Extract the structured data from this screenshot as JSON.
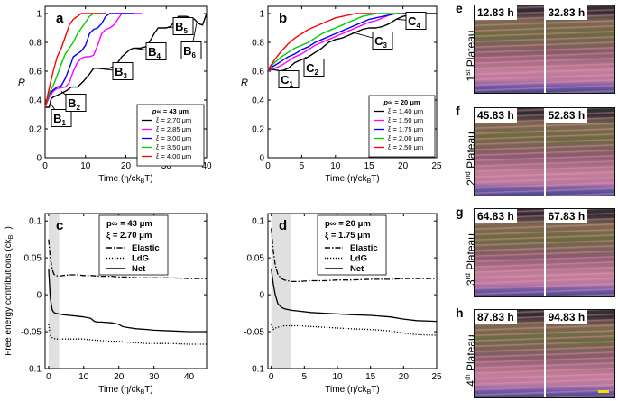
{
  "panels": {
    "a": {
      "letter": "a",
      "xlabel": "Time (η/ck_BT)",
      "ylabel": "R",
      "xticks": [
        "0",
        "10",
        "20",
        "30",
        "40"
      ],
      "yticks": [
        "0",
        "0.2",
        "0.4",
        "0.6",
        "0.8",
        "1"
      ],
      "legend_title": "p∞ = 43 μm",
      "legend": [
        "ξ = 2.70 μm",
        "ξ = 2.85 μm",
        "ξ = 3.00 μm",
        "ξ = 3.50 μm",
        "ξ = 4.00 μm"
      ],
      "markers": [
        "B1",
        "B2",
        "B3",
        "B4",
        "B5",
        "B6"
      ]
    },
    "b": {
      "letter": "b",
      "xlabel": "Time (η/ck_BT)",
      "ylabel": "R",
      "xticks": [
        "0",
        "5",
        "10",
        "15",
        "20",
        "25"
      ],
      "yticks": [
        "0",
        "0.2",
        "0.4",
        "0.6",
        "0.8",
        "1"
      ],
      "legend_title": "p∞ = 20 μm",
      "legend": [
        "ξ = 1.40 μm",
        "ξ = 1.50 μm",
        "ξ = 1.75 μm",
        "ξ = 2.00 μm",
        "ξ = 2.50 μm"
      ],
      "markers": [
        "C1",
        "C2",
        "C3",
        "C4"
      ]
    },
    "c": {
      "letter": "c",
      "xlabel": "Time (η/ck_BT)",
      "ylabel": "Free energy contributions (ck_BT)",
      "xticks": [
        "0",
        "10",
        "20",
        "30",
        "40"
      ],
      "yticks": [
        "-0.1",
        "-0.05",
        "0",
        "0.05",
        "0.1"
      ],
      "legend_title": "p∞ = 43 μm",
      "legend_sub": "ξ = 2.70 μm",
      "legend": [
        "Elastic",
        "LdG",
        "Net"
      ]
    },
    "d": {
      "letter": "d",
      "xlabel": "Time (η/ck_BT)",
      "ylabel": "",
      "xticks": [
        "0",
        "5",
        "10",
        "15",
        "20",
        "25"
      ],
      "yticks": [
        "-0.1",
        "-0.05",
        "0",
        "0.05",
        "0.1"
      ],
      "legend_title": "p∞ = 20 μm",
      "legend_sub": "ξ = 1.75 μm",
      "legend": [
        "Elastic",
        "LdG",
        "Net"
      ]
    }
  },
  "chart_data": [
    {
      "type": "line",
      "panel": "a",
      "xlim": [
        0,
        40
      ],
      "ylim": [
        0,
        1.05
      ],
      "series": [
        {
          "name": "ξ = 2.70 μm",
          "color": "#000000",
          "x": [
            0,
            1,
            1.5,
            2,
            3.5,
            5,
            6.5,
            8,
            9.5,
            11,
            12,
            14,
            16,
            17.5,
            19,
            21,
            22,
            23.5,
            25,
            26,
            27,
            28,
            29,
            30,
            31,
            32,
            33,
            34,
            35,
            36,
            37,
            38,
            39,
            40
          ],
          "y": [
            0.35,
            0.35,
            0.41,
            0.42,
            0.44,
            0.46,
            0.49,
            0.49,
            0.53,
            0.58,
            0.62,
            0.62,
            0.62,
            0.64,
            0.7,
            0.75,
            0.76,
            0.76,
            0.77,
            0.81,
            0.86,
            0.9,
            0.9,
            0.9,
            0.91,
            0.94,
            0.98,
            0.98,
            0.98,
            0.97,
            0.96,
            0.93,
            0.92,
            1.0
          ]
        },
        {
          "name": "ξ = 2.85 μm",
          "color": "#ff00ff",
          "x": [
            0,
            1,
            2,
            3,
            5,
            6,
            7,
            8,
            9,
            10,
            11,
            12,
            13,
            14,
            15,
            16,
            17,
            18,
            19,
            20,
            22,
            24
          ],
          "y": [
            0.35,
            0.42,
            0.46,
            0.48,
            0.49,
            0.52,
            0.6,
            0.66,
            0.69,
            0.7,
            0.7,
            0.71,
            0.78,
            0.86,
            0.89,
            0.9,
            0.92,
            0.96,
            1.0,
            1.0,
            1.0,
            1.0
          ]
        },
        {
          "name": "ξ = 3.00 μm",
          "color": "#0000ff",
          "x": [
            0,
            1,
            2,
            3,
            4,
            5,
            6,
            7,
            8,
            9,
            10,
            11,
            12,
            13,
            14,
            15,
            16,
            17,
            18,
            20,
            22
          ],
          "y": [
            0.35,
            0.44,
            0.47,
            0.49,
            0.5,
            0.55,
            0.62,
            0.7,
            0.72,
            0.74,
            0.78,
            0.86,
            0.89,
            0.9,
            0.93,
            0.98,
            1.0,
            1.0,
            1.0,
            1.0,
            1.0
          ]
        },
        {
          "name": "ξ = 3.50 μm",
          "color": "#00cc00",
          "x": [
            0,
            1,
            2,
            3,
            4,
            5,
            6,
            7,
            8,
            9,
            10,
            11,
            12,
            13,
            15
          ],
          "y": [
            0.35,
            0.45,
            0.5,
            0.57,
            0.65,
            0.72,
            0.76,
            0.8,
            0.86,
            0.9,
            0.94,
            0.98,
            1.0,
            1.0,
            1.0
          ]
        },
        {
          "name": "ξ = 4.00 μm",
          "color": "#ff0000",
          "x": [
            0,
            1,
            2,
            3,
            4,
            5,
            6,
            7,
            8,
            9,
            10,
            11,
            12,
            13,
            15
          ],
          "y": [
            0.35,
            0.48,
            0.6,
            0.7,
            0.76,
            0.84,
            0.92,
            0.96,
            0.98,
            1.0,
            1.0,
            1.0,
            1.0,
            1.0,
            1.0
          ]
        }
      ]
    },
    {
      "type": "line",
      "panel": "b",
      "xlim": [
        0,
        25
      ],
      "ylim": [
        0,
        1.05
      ],
      "series": [
        {
          "name": "ξ = 1.40 μm",
          "color": "#000000",
          "x": [
            0,
            1,
            2,
            3,
            4,
            5,
            6,
            7,
            8,
            9,
            10,
            11,
            12,
            13,
            14,
            15,
            16,
            17,
            18,
            19,
            20,
            21,
            22,
            23,
            24,
            25
          ],
          "y": [
            0.61,
            0.61,
            0.6,
            0.62,
            0.66,
            0.68,
            0.7,
            0.73,
            0.76,
            0.8,
            0.82,
            0.83,
            0.85,
            0.87,
            0.89,
            0.9,
            0.9,
            0.91,
            0.93,
            0.96,
            0.98,
            0.99,
            1.0,
            1.0,
            1.0,
            1.0
          ]
        },
        {
          "name": "ξ = 1.50 μm",
          "color": "#ff00ff",
          "x": [
            0,
            1,
            2,
            3,
            4,
            5,
            6,
            7,
            8,
            9,
            10,
            11,
            12,
            13,
            14,
            15,
            16,
            17,
            18,
            19,
            20,
            21,
            22
          ],
          "y": [
            0.61,
            0.62,
            0.64,
            0.67,
            0.7,
            0.72,
            0.75,
            0.78,
            0.8,
            0.82,
            0.84,
            0.86,
            0.88,
            0.9,
            0.92,
            0.94,
            0.95,
            0.97,
            0.99,
            1.0,
            1.0,
            1.0,
            1.0
          ]
        },
        {
          "name": "ξ = 1.75 μm",
          "color": "#0000ff",
          "x": [
            0,
            1,
            2,
            3,
            4,
            5,
            6,
            7,
            8,
            9,
            10,
            11,
            12,
            13,
            14,
            15,
            16,
            17,
            18,
            19,
            20,
            21
          ],
          "y": [
            0.61,
            0.64,
            0.67,
            0.7,
            0.72,
            0.75,
            0.77,
            0.8,
            0.82,
            0.84,
            0.86,
            0.88,
            0.9,
            0.92,
            0.94,
            0.96,
            0.97,
            0.98,
            0.99,
            1.0,
            1.0,
            1.0
          ]
        },
        {
          "name": "ξ = 2.00 μm",
          "color": "#00cc00",
          "x": [
            0,
            1,
            2,
            3,
            4,
            5,
            6,
            7,
            8,
            9,
            10,
            11,
            12,
            13,
            14,
            15,
            16,
            17,
            18,
            20
          ],
          "y": [
            0.61,
            0.66,
            0.7,
            0.73,
            0.76,
            0.78,
            0.8,
            0.83,
            0.86,
            0.88,
            0.9,
            0.92,
            0.94,
            0.96,
            0.98,
            0.99,
            1.0,
            1.0,
            1.0,
            1.0
          ]
        },
        {
          "name": "ξ = 2.50 μm",
          "color": "#ff0000",
          "x": [
            0,
            1,
            2,
            3,
            4,
            5,
            6,
            7,
            8,
            9,
            10,
            11,
            12,
            13,
            14,
            16
          ],
          "y": [
            0.61,
            0.68,
            0.74,
            0.79,
            0.83,
            0.86,
            0.89,
            0.91,
            0.93,
            0.95,
            0.97,
            0.98,
            0.99,
            1.0,
            1.0,
            1.0
          ]
        }
      ]
    },
    {
      "type": "line",
      "panel": "c",
      "xlim": [
        -1,
        45
      ],
      "ylim": [
        -0.1,
        0.11
      ],
      "shaded_x": [
        0,
        3
      ],
      "series": [
        {
          "name": "Elastic",
          "style": "dashdot",
          "x": [
            0,
            0.5,
            1,
            1.5,
            2,
            3,
            4,
            6,
            8,
            10,
            12,
            15,
            18,
            20,
            22,
            25,
            28,
            30,
            35,
            40,
            45
          ],
          "y": [
            0.075,
            0.05,
            0.035,
            0.028,
            0.026,
            0.025,
            0.026,
            0.027,
            0.027,
            0.026,
            0.026,
            0.025,
            0.025,
            0.024,
            0.024,
            0.023,
            0.023,
            0.023,
            0.023,
            0.022,
            0.022
          ]
        },
        {
          "name": "LdG",
          "style": "dotted",
          "x": [
            0,
            0.5,
            1,
            1.5,
            2,
            3,
            4,
            6,
            8,
            10,
            12,
            15,
            18,
            20,
            22,
            25,
            28,
            30,
            35,
            40,
            45
          ],
          "y": [
            -0.04,
            -0.055,
            -0.058,
            -0.059,
            -0.06,
            -0.06,
            -0.06,
            -0.06,
            -0.06,
            -0.06,
            -0.061,
            -0.062,
            -0.063,
            -0.063,
            -0.064,
            -0.065,
            -0.066,
            -0.066,
            -0.066,
            -0.067,
            -0.067
          ]
        },
        {
          "name": "Net",
          "style": "solid",
          "x": [
            0,
            0.5,
            1,
            1.5,
            2,
            3,
            4,
            6,
            8,
            10,
            12,
            13,
            14,
            15,
            18,
            20,
            21,
            22,
            25,
            28,
            30,
            35,
            40,
            45
          ],
          "y": [
            0.035,
            -0.005,
            -0.02,
            -0.024,
            -0.025,
            -0.026,
            -0.027,
            -0.028,
            -0.029,
            -0.03,
            -0.032,
            -0.036,
            -0.037,
            -0.037,
            -0.038,
            -0.04,
            -0.043,
            -0.044,
            -0.046,
            -0.047,
            -0.048,
            -0.049,
            -0.05,
            -0.05
          ]
        }
      ]
    },
    {
      "type": "line",
      "panel": "d",
      "xlim": [
        -0.5,
        25
      ],
      "ylim": [
        -0.1,
        0.11
      ],
      "shaded_x": [
        0,
        3
      ],
      "series": [
        {
          "name": "Elastic",
          "style": "dashdot",
          "x": [
            0,
            0.3,
            0.6,
            1,
            1.5,
            2,
            3,
            4,
            6,
            8,
            10,
            12,
            15,
            18,
            20,
            22,
            25
          ],
          "y": [
            0.09,
            0.06,
            0.04,
            0.028,
            0.022,
            0.02,
            0.018,
            0.018,
            0.019,
            0.019,
            0.02,
            0.02,
            0.021,
            0.021,
            0.022,
            0.022,
            0.022
          ]
        },
        {
          "name": "LdG",
          "style": "dotted",
          "x": [
            0,
            0.3,
            0.6,
            1,
            1.5,
            2,
            3,
            4,
            6,
            8,
            10,
            12,
            15,
            18,
            20,
            22,
            25
          ],
          "y": [
            -0.04,
            -0.047,
            -0.045,
            -0.044,
            -0.043,
            -0.042,
            -0.042,
            -0.042,
            -0.043,
            -0.044,
            -0.045,
            -0.046,
            -0.047,
            -0.049,
            -0.052,
            -0.054,
            -0.055
          ]
        },
        {
          "name": "Net",
          "style": "solid",
          "x": [
            0,
            0.3,
            0.6,
            1,
            1.5,
            2,
            3,
            4,
            6,
            8,
            10,
            12,
            15,
            18,
            20,
            22,
            25
          ],
          "y": [
            0.035,
            0.015,
            0.0,
            -0.012,
            -0.017,
            -0.019,
            -0.021,
            -0.022,
            -0.024,
            -0.025,
            -0.026,
            -0.027,
            -0.028,
            -0.03,
            -0.033,
            -0.035,
            -0.036
          ]
        }
      ]
    }
  ],
  "micrographs": [
    {
      "letter": "e",
      "row_label_ord": "1",
      "row_label_sup": "st",
      "row_label_text": " Plateau",
      "time_left": "12.83 h",
      "time_right": "32.83 h"
    },
    {
      "letter": "f",
      "row_label_ord": "2",
      "row_label_sup": "nd",
      "row_label_text": " Plateau",
      "time_left": "45.83 h",
      "time_right": "52.83 h"
    },
    {
      "letter": "g",
      "row_label_ord": "3",
      "row_label_sup": "rd",
      "row_label_text": " Plateau",
      "time_left": "64.83 h",
      "time_right": "67.83 h"
    },
    {
      "letter": "h",
      "row_label_ord": "4",
      "row_label_sup": "th",
      "row_label_text": " Plateau",
      "time_left": "87.83 h",
      "time_right": "94.83 h"
    }
  ]
}
